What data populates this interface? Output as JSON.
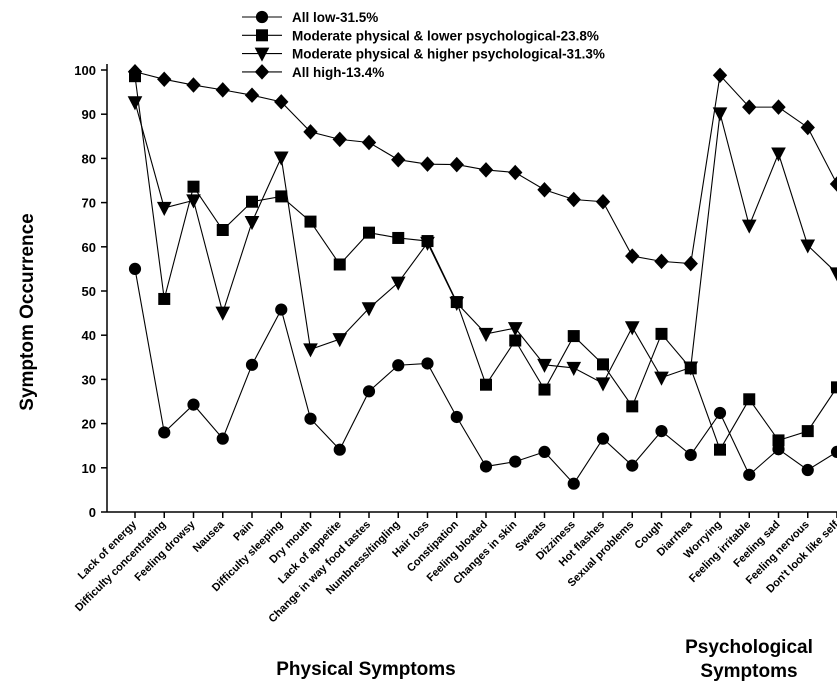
{
  "chart_data": {
    "type": "line",
    "ylabel": "Symptom Occurrence",
    "xlabel_groups": [
      "Physical Symptoms",
      "Psychological",
      "Symptoms"
    ],
    "ylim": [
      0,
      100
    ],
    "yticks": [
      0,
      10,
      20,
      30,
      40,
      50,
      60,
      70,
      80,
      90,
      100
    ],
    "grid": false,
    "legend_position": "top-left",
    "categories": [
      "Lack of energy",
      "Difficulty concentrating",
      "Feeling drowsy",
      "Nausea",
      "Pain",
      "Difficulty sleeping",
      "Dry mouth",
      "Lack of appetite",
      "Change in way food tastes",
      "Numbness/tingling",
      "Hair loss",
      "Constipation",
      "Feeling bloated",
      "Changes in skin",
      "Sweats",
      "Dizziness",
      "Hot flashes",
      "Sexual problems",
      "Cough",
      "Diarrhea",
      "Worrying",
      "Feeling irritable",
      "Feeling sad",
      "Feeling nervous",
      "Don't look like self"
    ],
    "series": [
      {
        "name": "All low-31.5%",
        "marker": "circle",
        "values": [
          55,
          18,
          24.3,
          16.6,
          33.3,
          45.8,
          21.1,
          14.1,
          27.3,
          33.2,
          33.6,
          21.5,
          10.3,
          11.4,
          13.6,
          6.4,
          16.6,
          10.5,
          18.3,
          12.9,
          22.4,
          8.4,
          14.2,
          9.5,
          13.6
        ]
      },
      {
        "name": "Moderate physical & lower psychological-23.8%",
        "marker": "square",
        "values": [
          98.6,
          48.2,
          73.6,
          63.8,
          70.2,
          71.4,
          65.7,
          56,
          63.2,
          62,
          61.3,
          47.5,
          28.8,
          38.8,
          27.7,
          39.8,
          33.4,
          23.9,
          40.3,
          32.5,
          14.1,
          25.5,
          16.2,
          18.3,
          28.2
        ]
      },
      {
        "name": "Moderate physical & higher psychological-31.3%",
        "marker": "triangle-down",
        "values": [
          92.7,
          68.8,
          70.5,
          45.1,
          65.6,
          80.2,
          36.8,
          39.1,
          46.1,
          51.9,
          60.9,
          47.3,
          40.3,
          41.6,
          33.3,
          32.6,
          29.1,
          41.8,
          30.4,
          32.7,
          90.2,
          64.8,
          81.1,
          60.3,
          54
        ]
      },
      {
        "name": "All high-13.4%",
        "marker": "diamond",
        "values": [
          99.6,
          97.9,
          96.6,
          95.5,
          94.3,
          92.8,
          86,
          84.3,
          83.6,
          79.7,
          78.7,
          78.6,
          77.4,
          76.8,
          72.9,
          70.7,
          70.2,
          57.9,
          56.7,
          56.2,
          98.8,
          91.6,
          91.6,
          87,
          74.2
        ]
      }
    ]
  }
}
